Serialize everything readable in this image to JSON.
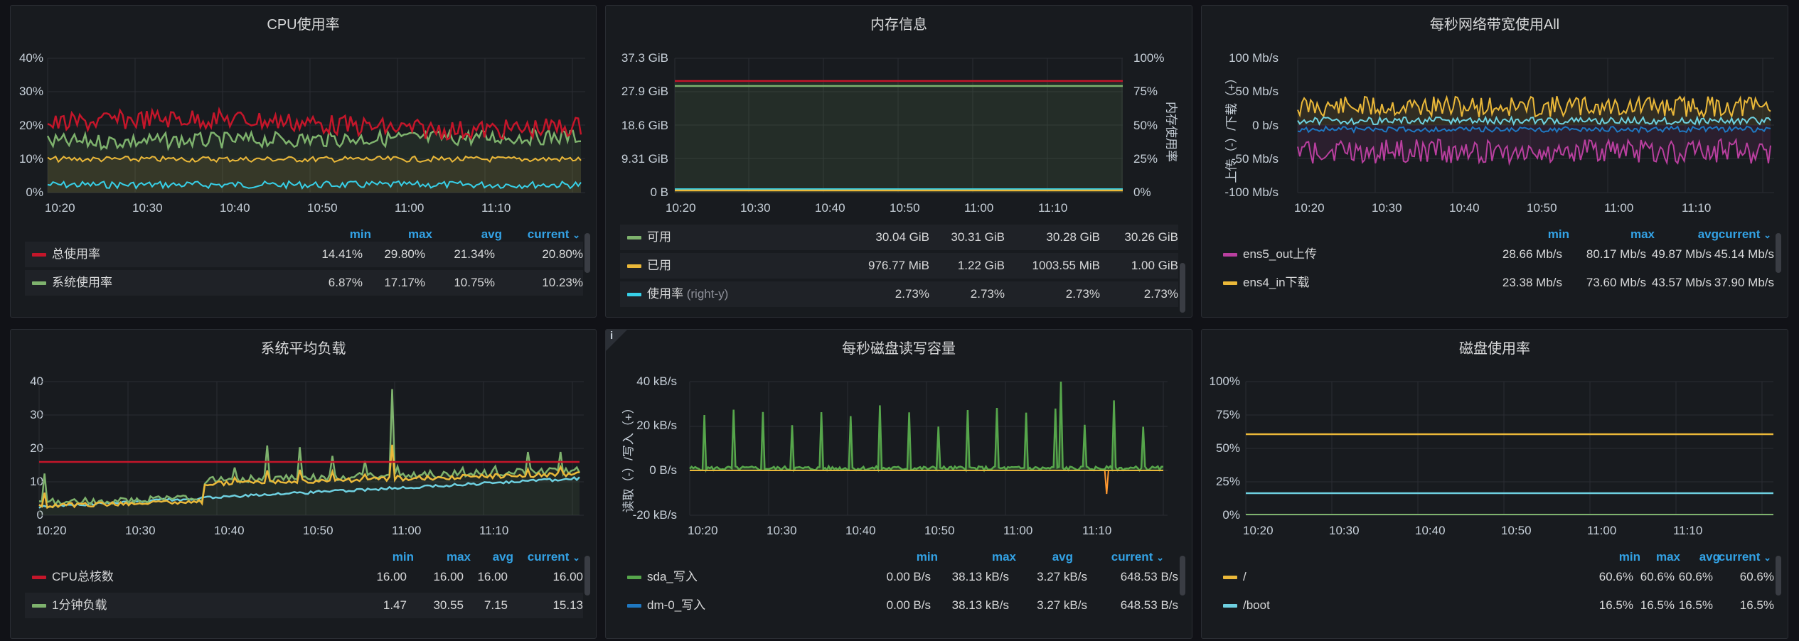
{
  "panels": {
    "cpu": {
      "title": "CPU使用率",
      "y_ticks": [
        "40%",
        "30%",
        "20%",
        "10%",
        "0%"
      ],
      "x_ticks": [
        "10:20",
        "10:30",
        "10:40",
        "10:50",
        "11:00",
        "11:10"
      ],
      "headers": [
        "min",
        "max",
        "avg",
        "current"
      ],
      "rows": [
        {
          "name": "总使用率",
          "color": "#c4162a",
          "values": [
            "14.41%",
            "29.80%",
            "21.34%",
            "20.80%"
          ]
        },
        {
          "name": "系统使用率",
          "color": "#7eb26d",
          "values": [
            "6.87%",
            "17.17%",
            "10.75%",
            "10.23%"
          ]
        }
      ]
    },
    "mem": {
      "title": "内存信息",
      "y_ticks_left": [
        "37.3 GiB",
        "27.9 GiB",
        "18.6 GiB",
        "9.31 GiB",
        "0 B"
      ],
      "y_ticks_right": [
        "100%",
        "75%",
        "50%",
        "25%",
        "0%"
      ],
      "right_axis_label": "内存使用率",
      "x_ticks": [
        "10:20",
        "10:30",
        "10:40",
        "10:50",
        "11:00",
        "11:10"
      ],
      "rows": [
        {
          "name": "可用",
          "suffix": "",
          "color": "#7eb26d",
          "values": [
            "30.04 GiB",
            "30.31 GiB",
            "30.28 GiB",
            "30.26 GiB"
          ]
        },
        {
          "name": "已用",
          "suffix": "",
          "color": "#eab839",
          "values": [
            "976.77 MiB",
            "1.22 GiB",
            "1003.55 MiB",
            "1.00 GiB"
          ]
        },
        {
          "name": "使用率",
          "suffix": "(right-y)",
          "color": "#37d0e8",
          "values": [
            "2.73%",
            "2.73%",
            "2.73%",
            "2.73%"
          ]
        }
      ]
    },
    "net": {
      "title": "每秒网络带宽使用All",
      "y_ticks": [
        "100 Mb/s",
        "50 Mb/s",
        "0 b/s",
        "-50 Mb/s",
        "-100 Mb/s"
      ],
      "y_axis_label": "上传（-）/下载（+）",
      "x_ticks": [
        "10:20",
        "10:30",
        "10:40",
        "10:50",
        "11:00",
        "11:10"
      ],
      "headers": [
        "min",
        "max",
        "avg",
        "current"
      ],
      "rows": [
        {
          "name": "ens5_out上传",
          "color": "#b93f9f",
          "values": [
            "28.66 Mb/s",
            "80.17 Mb/s",
            "49.87 Mb/s",
            "45.14 Mb/s"
          ]
        },
        {
          "name": "ens4_in下载",
          "color": "#eab839",
          "values": [
            "23.38 Mb/s",
            "73.60 Mb/s",
            "43.57 Mb/s",
            "37.90 Mb/s"
          ]
        }
      ]
    },
    "load": {
      "title": "系统平均负载",
      "y_ticks": [
        "40",
        "30",
        "20",
        "10",
        "0"
      ],
      "x_ticks": [
        "10:20",
        "10:30",
        "10:40",
        "10:50",
        "11:00",
        "11:10"
      ],
      "headers": [
        "min",
        "max",
        "avg",
        "current"
      ],
      "rows": [
        {
          "name": "CPU总核数",
          "color": "#c4162a",
          "values": [
            "16.00",
            "16.00",
            "16.00",
            "16.00"
          ]
        },
        {
          "name": "1分钟负载",
          "color": "#7eb26d",
          "values": [
            "1.47",
            "30.55",
            "7.15",
            "15.13"
          ]
        }
      ]
    },
    "disk": {
      "title": "每秒磁盘读写容量",
      "info_icon": "i",
      "y_ticks": [
        "40 kB/s",
        "20 kB/s",
        "0 B/s",
        "-20 kB/s"
      ],
      "y_axis_label": "读取（-）/写入（+）",
      "x_ticks": [
        "10:20",
        "10:30",
        "10:40",
        "10:50",
        "11:00",
        "11:10"
      ],
      "headers": [
        "min",
        "max",
        "avg",
        "current"
      ],
      "rows": [
        {
          "name": "sda_写入",
          "color": "#56a64b",
          "values": [
            "0.00 B/s",
            "38.13 kB/s",
            "3.27 kB/s",
            "648.53 B/s"
          ]
        },
        {
          "name": "dm-0_写入",
          "color": "#1f78c1",
          "values": [
            "0.00 B/s",
            "38.13 kB/s",
            "3.27 kB/s",
            "648.53 B/s"
          ]
        }
      ]
    },
    "usage": {
      "title": "磁盘使用率",
      "y_ticks": [
        "100%",
        "75%",
        "50%",
        "25%",
        "0%"
      ],
      "x_ticks": [
        "10:20",
        "10:30",
        "10:40",
        "10:50",
        "11:00",
        "11:10"
      ],
      "headers": [
        "min",
        "max",
        "avg",
        "current"
      ],
      "rows": [
        {
          "name": "/",
          "color": "#eab839",
          "values": [
            "60.6%",
            "60.6%",
            "60.6%",
            "60.6%"
          ]
        },
        {
          "name": "/boot",
          "color": "#6ed0e0",
          "values": [
            "16.5%",
            "16.5%",
            "16.5%",
            "16.5%"
          ]
        }
      ]
    }
  }
}
